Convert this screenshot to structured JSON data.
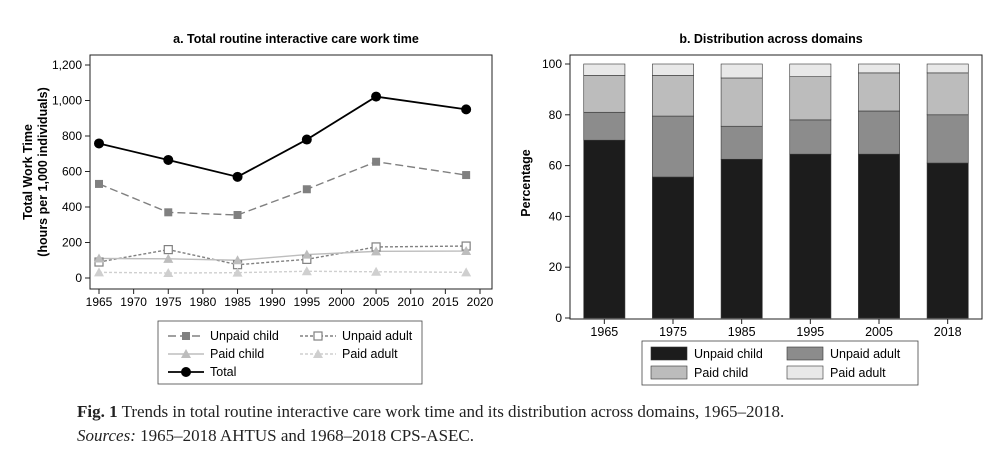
{
  "caption": {
    "fig_label": "Fig. 1",
    "text": "Trends in total routine interactive care work time and its distribution across domains, 1965–2018.",
    "sources_label": "Sources:",
    "sources_text": "1965–2018 AHTUS and 1968–2018 CPS-ASEC."
  },
  "chart_data": [
    {
      "type": "line",
      "title": "a. Total routine interactive care work time",
      "ylabel_lines": [
        "Total Work Time",
        "(hours per 1,000 individuals)"
      ],
      "xlim": [
        1965,
        2020
      ],
      "ylim": [
        -50,
        1250
      ],
      "x_ticks": [
        1965,
        1970,
        1975,
        1980,
        1985,
        1990,
        1995,
        2000,
        2005,
        2010,
        2015,
        2020
      ],
      "y_ticks": [
        0,
        200,
        400,
        600,
        800,
        1000,
        1200
      ],
      "y_tick_labels": [
        "0",
        "200",
        "400",
        "600",
        "800",
        "1,000",
        "1,200"
      ],
      "x": [
        1965,
        1975,
        1985,
        1995,
        2005,
        2018
      ],
      "series": [
        {
          "name": "Unpaid child",
          "values": [
            530,
            370,
            355,
            500,
            655,
            580
          ],
          "marker": "square",
          "color": "#808080",
          "dash": "8 4"
        },
        {
          "name": "Unpaid adult",
          "values": [
            90,
            160,
            75,
            105,
            175,
            180
          ],
          "marker": "hollow-square",
          "color": "#808080",
          "dash": "3 2"
        },
        {
          "name": "Paid child",
          "values": [
            110,
            108,
            100,
            132,
            150,
            152
          ],
          "marker": "triangle",
          "color": "#bdbdbd",
          "dash": ""
        },
        {
          "name": "Paid adult",
          "values": [
            32,
            28,
            30,
            38,
            35,
            32
          ],
          "marker": "triangle",
          "color": "#cfcfcf",
          "dash": "3 2"
        },
        {
          "name": "Total",
          "values": [
            758,
            665,
            570,
            780,
            1022,
            950
          ],
          "marker": "circle",
          "color": "#000000",
          "dash": ""
        }
      ],
      "legend_position": "bottom"
    },
    {
      "type": "bar",
      "stacked": true,
      "title": "b. Distribution across domains",
      "ylabel": "Percentage",
      "ylim": [
        0,
        100
      ],
      "y_ticks": [
        0,
        20,
        40,
        60,
        80,
        100
      ],
      "categories": [
        "1965",
        "1975",
        "1985",
        "1995",
        "2005",
        "2018"
      ],
      "series": [
        {
          "name": "Unpaid child",
          "values": [
            70,
            55.5,
            62.5,
            64.5,
            64.5,
            61
          ],
          "color": "#1c1c1c"
        },
        {
          "name": "Unpaid adult",
          "values": [
            11,
            24,
            13,
            13.5,
            17,
            19
          ],
          "color": "#8c8c8c"
        },
        {
          "name": "Paid child",
          "values": [
            14.5,
            16,
            19,
            17,
            15,
            16.5
          ],
          "color": "#bcbcbc"
        },
        {
          "name": "Paid adult",
          "values": [
            4.5,
            4.5,
            5.5,
            5,
            3.5,
            3.5
          ],
          "color": "#e8e8e8"
        }
      ],
      "legend_position": "bottom"
    }
  ]
}
